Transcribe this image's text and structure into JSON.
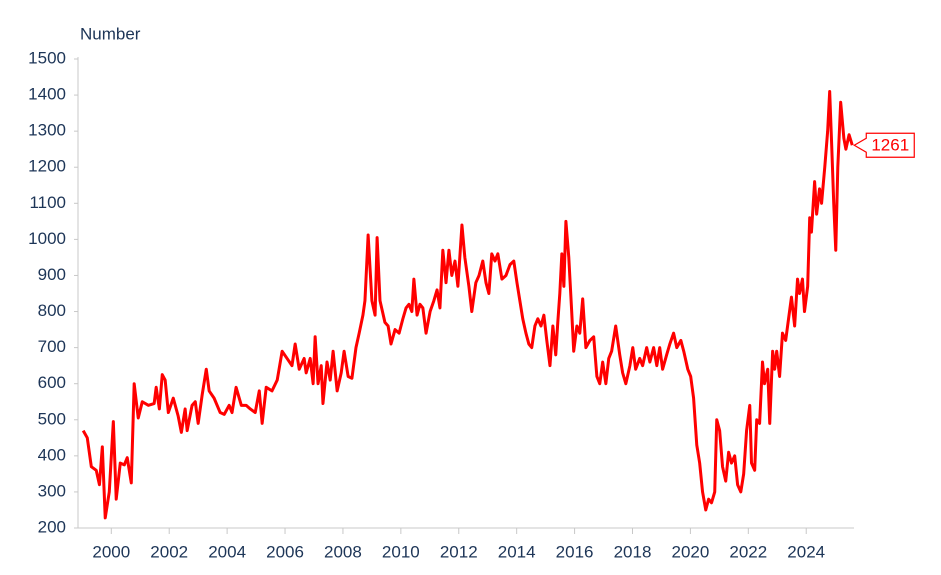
{
  "chart_data": {
    "type": "line",
    "y_label": "Number",
    "x": [
      1999.03,
      1999.17,
      1999.31,
      1999.48,
      1999.59,
      1999.69,
      1999.79,
      1999.93,
      2000.07,
      2000.17,
      2000.31,
      2000.45,
      2000.55,
      2000.69,
      2000.79,
      2000.93,
      2001.07,
      2001.28,
      2001.48,
      2001.55,
      2001.66,
      2001.76,
      2001.86,
      2001.97,
      2002.14,
      2002.31,
      2002.42,
      2002.55,
      2002.62,
      2002.79,
      2002.9,
      2003.0,
      2003.14,
      2003.28,
      2003.38,
      2003.55,
      2003.76,
      2003.9,
      2004.07,
      2004.17,
      2004.31,
      2004.49,
      2004.66,
      2004.8,
      2004.97,
      2005.11,
      2005.21,
      2005.35,
      2005.55,
      2005.73,
      2005.9,
      2006.07,
      2006.24,
      2006.35,
      2006.49,
      2006.66,
      2006.73,
      2006.87,
      2006.97,
      2007.04,
      2007.14,
      2007.25,
      2007.31,
      2007.45,
      2007.56,
      2007.66,
      2007.8,
      2007.94,
      2008.04,
      2008.18,
      2008.31,
      2008.45,
      2008.56,
      2008.69,
      2008.76,
      2008.87,
      2009.0,
      2009.11,
      2009.18,
      2009.28,
      2009.45,
      2009.56,
      2009.66,
      2009.8,
      2009.94,
      2010.07,
      2010.18,
      2010.28,
      2010.38,
      2010.45,
      2010.56,
      2010.66,
      2010.76,
      2010.87,
      2011.01,
      2011.14,
      2011.25,
      2011.35,
      2011.45,
      2011.56,
      2011.66,
      2011.76,
      2011.87,
      2011.97,
      2012.11,
      2012.21,
      2012.35,
      2012.45,
      2012.59,
      2012.7,
      2012.83,
      2012.94,
      2013.04,
      2013.14,
      2013.25,
      2013.35,
      2013.49,
      2013.63,
      2013.77,
      2013.9,
      2014.01,
      2014.11,
      2014.21,
      2014.32,
      2014.42,
      2014.52,
      2014.63,
      2014.73,
      2014.84,
      2014.94,
      2015.04,
      2015.15,
      2015.25,
      2015.35,
      2015.42,
      2015.49,
      2015.56,
      2015.63,
      2015.7,
      2015.8,
      2015.9,
      2015.97,
      2016.08,
      2016.18,
      2016.28,
      2016.39,
      2016.53,
      2016.66,
      2016.77,
      2016.87,
      2016.97,
      2017.08,
      2017.18,
      2017.28,
      2017.42,
      2017.56,
      2017.66,
      2017.77,
      2017.91,
      2018.01,
      2018.11,
      2018.25,
      2018.35,
      2018.49,
      2018.6,
      2018.73,
      2018.84,
      2018.94,
      2019.04,
      2019.18,
      2019.29,
      2019.42,
      2019.53,
      2019.67,
      2019.77,
      2019.91,
      2020.01,
      2020.11,
      2020.22,
      2020.32,
      2020.42,
      2020.53,
      2020.63,
      2020.73,
      2020.84,
      2020.91,
      2021.01,
      2021.11,
      2021.22,
      2021.32,
      2021.42,
      2021.53,
      2021.63,
      2021.74,
      2021.84,
      2021.94,
      2022.05,
      2022.11,
      2022.22,
      2022.29,
      2022.39,
      2022.49,
      2022.56,
      2022.67,
      2022.74,
      2022.84,
      2022.91,
      2022.98,
      2023.08,
      2023.18,
      2023.29,
      2023.39,
      2023.49,
      2023.6,
      2023.7,
      2023.77,
      2023.87,
      2023.94,
      2024.05,
      2024.12,
      2024.18,
      2024.29,
      2024.36,
      2024.46,
      2024.53,
      2024.64,
      2024.74,
      2024.81,
      2024.88,
      2024.95,
      2025.02,
      2025.09,
      2025.19,
      2025.3,
      2025.37,
      2025.48,
      2025.59
    ],
    "series": [
      {
        "color": "#ff0000",
        "values": [
          470,
          450,
          370,
          360,
          320,
          425,
          228,
          300,
          495,
          280,
          380,
          375,
          395,
          325,
          600,
          505,
          550,
          540,
          545,
          590,
          530,
          625,
          610,
          520,
          560,
          510,
          465,
          530,
          470,
          540,
          550,
          490,
          570,
          640,
          580,
          560,
          520,
          515,
          540,
          520,
          590,
          540,
          540,
          530,
          520,
          580,
          490,
          590,
          580,
          610,
          690,
          670,
          650,
          710,
          640,
          670,
          630,
          670,
          600,
          730,
          600,
          650,
          545,
          660,
          610,
          690,
          580,
          630,
          690,
          620,
          615,
          700,
          740,
          790,
          830,
          1012,
          830,
          790,
          1005,
          830,
          770,
          760,
          710,
          750,
          740,
          780,
          810,
          820,
          800,
          890,
          790,
          820,
          810,
          740,
          800,
          830,
          860,
          810,
          970,
          880,
          970,
          900,
          940,
          870,
          1040,
          950,
          870,
          800,
          880,
          900,
          940,
          880,
          850,
          960,
          940,
          960,
          890,
          900,
          930,
          940,
          880,
          830,
          780,
          740,
          710,
          700,
          760,
          780,
          760,
          790,
          720,
          650,
          760,
          680,
          770,
          850,
          960,
          870,
          1050,
          950,
          800,
          690,
          760,
          740,
          835,
          700,
          720,
          730,
          620,
          600,
          660,
          600,
          670,
          690,
          760,
          680,
          630,
          600,
          650,
          700,
          640,
          670,
          650,
          700,
          660,
          700,
          650,
          700,
          640,
          680,
          710,
          740,
          700,
          720,
          690,
          640,
          620,
          560,
          430,
          380,
          300,
          250,
          280,
          270,
          300,
          500,
          470,
          370,
          330,
          410,
          380,
          400,
          320,
          300,
          350,
          470,
          540,
          380,
          360,
          500,
          490,
          660,
          600,
          640,
          490,
          690,
          640,
          690,
          620,
          740,
          720,
          780,
          840,
          760,
          890,
          850,
          890,
          800,
          870,
          1060,
          1020,
          1160,
          1070,
          1140,
          1100,
          1200,
          1300,
          1410,
          1260,
          1100,
          970,
          1200,
          1380,
          1280,
          1250,
          1290,
          1261
        ]
      }
    ],
    "end_label": "1261",
    "xlim": [
      1998.85,
      2025.65
    ],
    "xticks": [
      2000,
      2002,
      2004,
      2006,
      2008,
      2010,
      2012,
      2014,
      2016,
      2018,
      2020,
      2022,
      2024
    ],
    "ylim": [
      200,
      1500
    ],
    "yticks": [
      200,
      300,
      400,
      500,
      600,
      700,
      800,
      900,
      1000,
      1100,
      1200,
      1300,
      1400,
      1500
    ],
    "grid": false
  }
}
